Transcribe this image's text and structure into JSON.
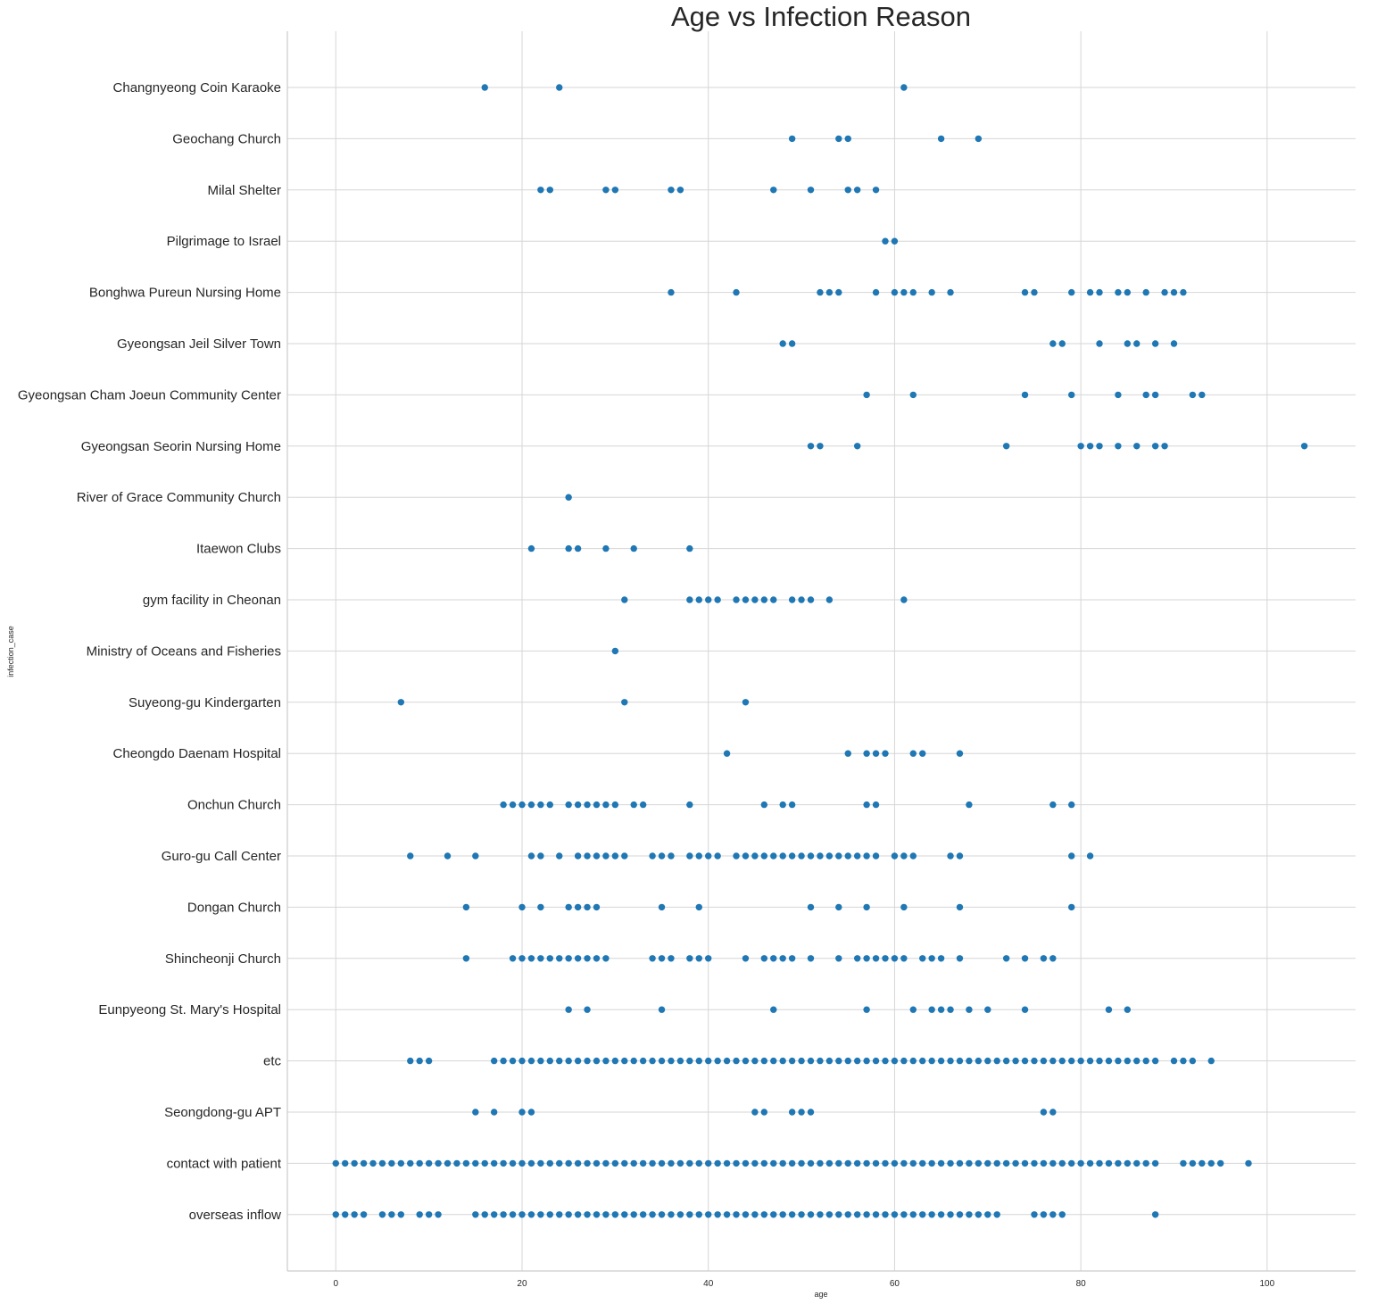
{
  "chart_data": {
    "type": "scatter",
    "title": "Age vs Infection Reason",
    "xlabel": "age",
    "ylabel": "infection_case",
    "xlim": [
      -5.2,
      109.5
    ],
    "xticks": [
      0,
      20,
      40,
      60,
      80,
      100
    ],
    "grid": true,
    "marker_color": "#1f77b4",
    "categories": [
      "Changnyeong Coin Karaoke",
      "Geochang Church",
      "Milal Shelter",
      "Pilgrimage to Israel",
      "Bonghwa Pureun Nursing Home",
      "Gyeongsan Jeil Silver Town",
      "Gyeongsan Cham Joeun Community Center",
      "Gyeongsan Seorin Nursing Home",
      "River of Grace Community Church",
      "Itaewon Clubs",
      "gym facility in Cheonan",
      "Ministry of Oceans and Fisheries",
      "Suyeong-gu Kindergarten",
      "Cheongdo Daenam Hospital",
      "Onchun Church",
      "Guro-gu Call Center",
      "Dongan Church",
      "Shincheonji Church",
      "Eunpyeong St. Mary's Hospital",
      "etc",
      "Seongdong-gu APT",
      "contact with patient",
      "overseas inflow"
    ],
    "series": [
      {
        "category": "Changnyeong Coin Karaoke",
        "ages": [
          16,
          24,
          61
        ]
      },
      {
        "category": "Geochang Church",
        "ages": [
          49,
          54,
          55,
          65,
          69
        ]
      },
      {
        "category": "Milal Shelter",
        "ages": [
          22,
          23,
          29,
          30,
          36,
          37,
          47,
          51,
          55,
          56,
          58
        ]
      },
      {
        "category": "Pilgrimage to Israel",
        "ages": [
          59,
          60
        ]
      },
      {
        "category": "Bonghwa Pureun Nursing Home",
        "ages": [
          36,
          43,
          52,
          53,
          54,
          58,
          60,
          61,
          62,
          64,
          66,
          74,
          75,
          79,
          81,
          82,
          84,
          85,
          87,
          89,
          90,
          91
        ]
      },
      {
        "category": "Gyeongsan Jeil Silver Town",
        "ages": [
          48,
          49,
          77,
          78,
          82,
          85,
          86,
          88,
          90
        ]
      },
      {
        "category": "Gyeongsan Cham Joeun Community Center",
        "ages": [
          57,
          62,
          74,
          79,
          84,
          87,
          88,
          92,
          93
        ]
      },
      {
        "category": "Gyeongsan Seorin Nursing Home",
        "ages": [
          51,
          52,
          56,
          72,
          80,
          81,
          82,
          84,
          86,
          88,
          89,
          104
        ]
      },
      {
        "category": "River of Grace Community Church",
        "ages": [
          25
        ]
      },
      {
        "category": "Itaewon Clubs",
        "ages": [
          21,
          25,
          26,
          29,
          32,
          38
        ]
      },
      {
        "category": "gym facility in Cheonan",
        "ages": [
          31,
          38,
          39,
          40,
          41,
          43,
          44,
          45,
          46,
          47,
          49,
          50,
          51,
          53,
          61
        ]
      },
      {
        "category": "Ministry of Oceans and Fisheries",
        "ages": [
          30
        ]
      },
      {
        "category": "Suyeong-gu Kindergarten",
        "ages": [
          7,
          31,
          44
        ]
      },
      {
        "category": "Cheongdo Daenam Hospital",
        "ages": [
          42,
          55,
          57,
          58,
          59,
          62,
          63,
          67
        ]
      },
      {
        "category": "Onchun Church",
        "ages": [
          18,
          19,
          20,
          21,
          22,
          23,
          25,
          26,
          27,
          28,
          29,
          30,
          32,
          33,
          38,
          46,
          48,
          49,
          57,
          58,
          68,
          77,
          79
        ]
      },
      {
        "category": "Guro-gu Call Center",
        "ages": [
          8,
          12,
          15,
          21,
          22,
          24,
          26,
          27,
          28,
          29,
          30,
          31,
          34,
          35,
          36,
          38,
          39,
          40,
          41,
          43,
          44,
          45,
          46,
          47,
          48,
          49,
          50,
          51,
          52,
          53,
          54,
          55,
          56,
          57,
          58,
          60,
          61,
          62,
          66,
          67,
          79,
          81
        ]
      },
      {
        "category": "Dongan Church",
        "ages": [
          14,
          20,
          22,
          25,
          26,
          27,
          28,
          35,
          39,
          51,
          54,
          57,
          61,
          67,
          79
        ]
      },
      {
        "category": "Shincheonji Church",
        "ages": [
          14,
          19,
          20,
          21,
          22,
          23,
          24,
          25,
          26,
          27,
          28,
          29,
          34,
          35,
          36,
          38,
          39,
          40,
          44,
          46,
          47,
          48,
          49,
          51,
          54,
          56,
          57,
          58,
          59,
          60,
          61,
          63,
          64,
          65,
          67,
          72,
          74,
          76,
          77
        ]
      },
      {
        "category": "Eunpyeong St. Mary's Hospital",
        "ages": [
          25,
          27,
          35,
          47,
          57,
          62,
          64,
          65,
          66,
          68,
          70,
          74,
          83,
          85
        ]
      },
      {
        "category": "etc",
        "ages": [
          8,
          9,
          10,
          17,
          18,
          19,
          20,
          21,
          22,
          23,
          24,
          25,
          26,
          27,
          28,
          29,
          30,
          31,
          32,
          33,
          34,
          35,
          36,
          37,
          38,
          39,
          40,
          41,
          42,
          43,
          44,
          45,
          46,
          47,
          48,
          49,
          50,
          51,
          52,
          53,
          54,
          55,
          56,
          57,
          58,
          59,
          60,
          61,
          62,
          63,
          64,
          65,
          66,
          67,
          68,
          69,
          70,
          71,
          72,
          73,
          74,
          75,
          76,
          77,
          78,
          79,
          80,
          81,
          82,
          83,
          84,
          85,
          86,
          87,
          88,
          90,
          91,
          92,
          94
        ]
      },
      {
        "category": "Seongdong-gu APT",
        "ages": [
          15,
          17,
          20,
          21,
          45,
          46,
          49,
          50,
          51,
          76,
          77
        ]
      },
      {
        "category": "contact with patient",
        "ages": [
          0,
          1,
          2,
          3,
          4,
          5,
          6,
          7,
          8,
          9,
          10,
          11,
          12,
          13,
          14,
          15,
          16,
          17,
          18,
          19,
          20,
          21,
          22,
          23,
          24,
          25,
          26,
          27,
          28,
          29,
          30,
          31,
          32,
          33,
          34,
          35,
          36,
          37,
          38,
          39,
          40,
          41,
          42,
          43,
          44,
          45,
          46,
          47,
          48,
          49,
          50,
          51,
          52,
          53,
          54,
          55,
          56,
          57,
          58,
          59,
          60,
          61,
          62,
          63,
          64,
          65,
          66,
          67,
          68,
          69,
          70,
          71,
          72,
          73,
          74,
          75,
          76,
          77,
          78,
          79,
          80,
          81,
          82,
          83,
          84,
          85,
          86,
          87,
          88,
          91,
          92,
          93,
          94,
          95,
          98
        ]
      },
      {
        "category": "overseas inflow",
        "ages": [
          0,
          1,
          2,
          3,
          5,
          6,
          7,
          9,
          10,
          11,
          15,
          16,
          17,
          18,
          19,
          20,
          21,
          22,
          23,
          24,
          25,
          26,
          27,
          28,
          29,
          30,
          31,
          32,
          33,
          34,
          35,
          36,
          37,
          38,
          39,
          40,
          41,
          42,
          43,
          44,
          45,
          46,
          47,
          48,
          49,
          50,
          51,
          52,
          53,
          54,
          55,
          56,
          57,
          58,
          59,
          60,
          61,
          62,
          63,
          64,
          65,
          66,
          67,
          68,
          69,
          70,
          71,
          75,
          76,
          77,
          78,
          88
        ]
      }
    ]
  }
}
